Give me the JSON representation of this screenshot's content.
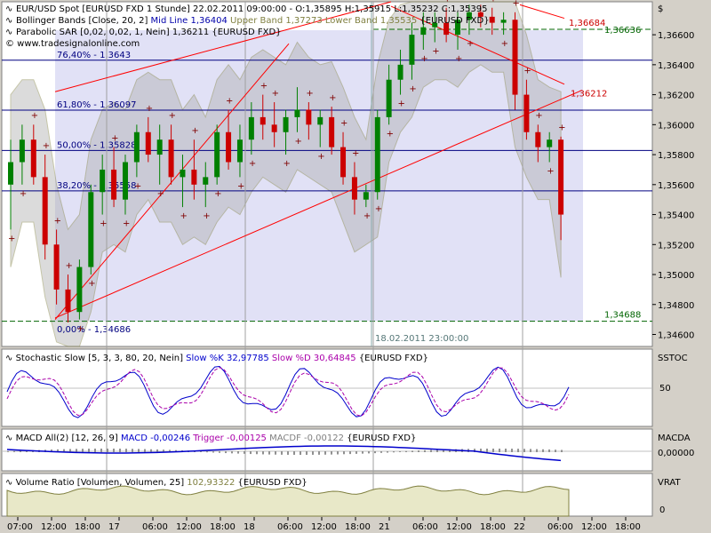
{
  "colors": {
    "bg": "#ffffff",
    "frame": "#d4d0c8",
    "up": "#008000",
    "down": "#cc0000",
    "sar": "#800000",
    "mid": "#0000aa",
    "band": "#808040",
    "fib": "#000080",
    "trend": "#ff0000",
    "stochK": "#0000cc",
    "stochD": "#aa00aa",
    "vol": "#808040"
  },
  "main": {
    "header": [
      {
        "icon": "indicator-icon",
        "text": "EUR/USD Spot [EURUSD FXD  1 Stunde] 22.02.2011 09:00:00 - O:1,35895 H:1,35915 L:1,35232 C:1,35395"
      },
      {
        "icon": "indicator-icon",
        "text": "Bollinger Bands [Close, 20, 2]",
        "parts": [
          {
            "t": "Mid Line 1,36404",
            "c": "#0000aa"
          },
          {
            "t": "Upper Band 1,37273 Lower Band 1,35535",
            "c": "#808040"
          },
          {
            "t": "{EURUSD FXD}",
            "c": "#000"
          }
        ]
      },
      {
        "icon": "indicator-icon",
        "text": "Parabolic SAR [0,02, 0,02, 1, Nein] 1,36211 {EURUSD FXD}"
      },
      {
        "icon": "copyright-icon",
        "text": "© www.tradesignalonline.com"
      }
    ],
    "currency": "$",
    "yticks": [
      "1,36600",
      "1,36400",
      "1,36200",
      "1,36000",
      "1,35800",
      "1,35600",
      "1,35400",
      "1,35200",
      "1,35000",
      "1,34800",
      "1,34600"
    ],
    "ylim": [
      1.3452,
      1.3682
    ],
    "fib_labels": [
      "76,40% - 1,3643",
      "61,80% - 1,36097",
      "50,00% - 1,35828",
      "38,20% - 1,35558",
      "0,00% - 1,34686"
    ],
    "level_high": "1,36636",
    "level_low": "1,34688",
    "level_trend1": "1,36684",
    "level_trend2": "1,36212",
    "cursor_date": "18.02.2011 23:00:00"
  },
  "stoch": {
    "title": "Stochastic Slow [5, 3, 3, 80, 20, Nein]",
    "k_label": "Slow %K 32,97785",
    "d_label": "Slow %D 30,64845",
    "src": "{EURUSD FXD}",
    "right": "SSTOC",
    "tick": "50"
  },
  "macd": {
    "title": "MACD All(2) [12, 26, 9]",
    "m_label": "MACD -0,00246",
    "t_label": "Trigger -0,00125",
    "h_label": "MACDF -0,00122",
    "src": "{EURUSD FXD}",
    "right": "MACDA",
    "tick": "0,00000"
  },
  "vol": {
    "title": "Volume Ratio [Volumen, Volumen, 25]",
    "v_label": "102,93322",
    "src": "{EURUSD FXD}",
    "right": "VRAT",
    "tick": "0"
  },
  "xaxis": {
    "labels": [
      "07:00",
      "12:00",
      "18:00",
      "17",
      "06:00",
      "12:00",
      "18:00",
      "18",
      "06:00",
      "12:00",
      "18:00",
      "21",
      "06:00",
      "12:00",
      "18:00",
      "22",
      "06:00",
      "12:00",
      "18:00"
    ]
  },
  "chart_data": {
    "type": "candlestick",
    "title": "EUR/USD Spot [EURUSD FXD  1 Stunde]",
    "ylim": [
      1.3452,
      1.3682
    ],
    "candles": [
      [
        1.356,
        1.359,
        1.353,
        1.3575
      ],
      [
        1.3575,
        1.36,
        1.356,
        1.359
      ],
      [
        1.359,
        1.36,
        1.356,
        1.3565
      ],
      [
        1.3565,
        1.358,
        1.351,
        1.352
      ],
      [
        1.352,
        1.353,
        1.348,
        1.349
      ],
      [
        1.349,
        1.35,
        1.3468,
        1.3475
      ],
      [
        1.3475,
        1.351,
        1.347,
        1.3505
      ],
      [
        1.3505,
        1.356,
        1.35,
        1.3555
      ],
      [
        1.3555,
        1.358,
        1.354,
        1.357
      ],
      [
        1.357,
        1.3585,
        1.3545,
        1.355
      ],
      [
        1.355,
        1.358,
        1.354,
        1.3575
      ],
      [
        1.3575,
        1.36,
        1.3565,
        1.3595
      ],
      [
        1.3595,
        1.3605,
        1.3575,
        1.358
      ],
      [
        1.358,
        1.36,
        1.356,
        1.359
      ],
      [
        1.359,
        1.36,
        1.356,
        1.3565
      ],
      [
        1.3565,
        1.358,
        1.3545,
        1.357
      ],
      [
        1.357,
        1.359,
        1.355,
        1.356
      ],
      [
        1.356,
        1.3575,
        1.3545,
        1.3565
      ],
      [
        1.3565,
        1.36,
        1.356,
        1.3595
      ],
      [
        1.3595,
        1.361,
        1.357,
        1.3575
      ],
      [
        1.3575,
        1.36,
        1.3565,
        1.359
      ],
      [
        1.359,
        1.3615,
        1.358,
        1.3605
      ],
      [
        1.3605,
        1.362,
        1.359,
        1.36
      ],
      [
        1.36,
        1.3615,
        1.3585,
        1.3595
      ],
      [
        1.3595,
        1.361,
        1.358,
        1.3605
      ],
      [
        1.3605,
        1.3625,
        1.3595,
        1.361
      ],
      [
        1.361,
        1.3615,
        1.359,
        1.36
      ],
      [
        1.36,
        1.361,
        1.3585,
        1.3605
      ],
      [
        1.3605,
        1.3612,
        1.358,
        1.3585
      ],
      [
        1.3585,
        1.3595,
        1.356,
        1.3565
      ],
      [
        1.3565,
        1.3575,
        1.354,
        1.355
      ],
      [
        1.355,
        1.356,
        1.3545,
        1.3555
      ],
      [
        1.3555,
        1.361,
        1.355,
        1.3605
      ],
      [
        1.3605,
        1.364,
        1.36,
        1.363
      ],
      [
        1.363,
        1.365,
        1.362,
        1.364
      ],
      [
        1.364,
        1.3668,
        1.363,
        1.366
      ],
      [
        1.366,
        1.3675,
        1.365,
        1.3665
      ],
      [
        1.3665,
        1.3675,
        1.3655,
        1.3668
      ],
      [
        1.3668,
        1.3678,
        1.3655,
        1.366
      ],
      [
        1.366,
        1.3675,
        1.365,
        1.367
      ],
      [
        1.367,
        1.368,
        1.366,
        1.3675
      ],
      [
        1.3675,
        1.368,
        1.3665,
        1.3672
      ],
      [
        1.3672,
        1.3678,
        1.366,
        1.3668
      ],
      [
        1.3668,
        1.3675,
        1.366,
        1.367
      ],
      [
        1.367,
        1.3675,
        1.361,
        1.362
      ],
      [
        1.362,
        1.363,
        1.359,
        1.3595
      ],
      [
        1.3595,
        1.36,
        1.3575,
        1.3585
      ],
      [
        1.3585,
        1.3595,
        1.3575,
        1.359
      ],
      [
        1.359,
        1.3592,
        1.3523,
        1.354
      ]
    ]
  }
}
